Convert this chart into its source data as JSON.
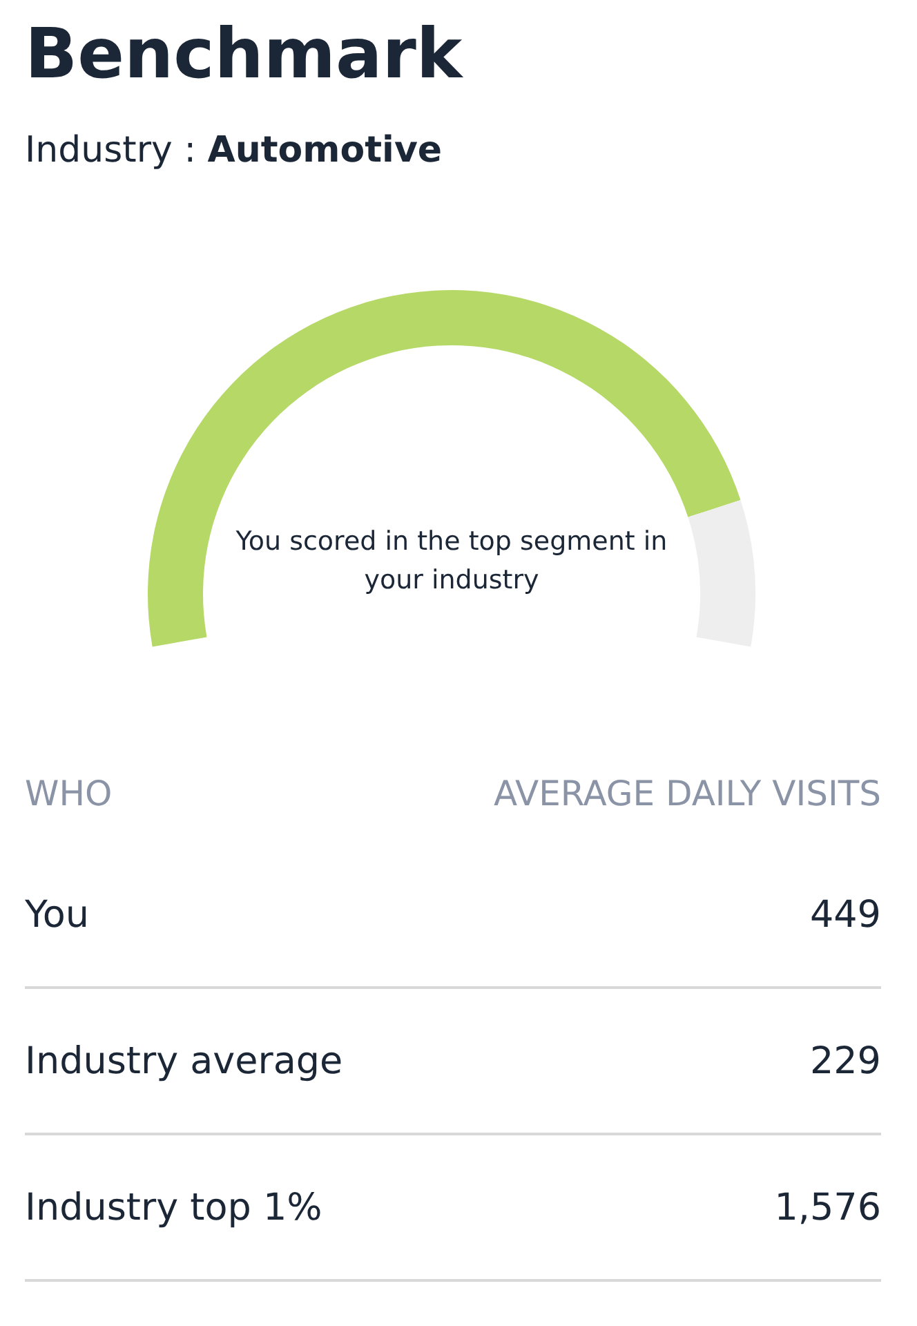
{
  "chart_data": [
    {
      "type": "donut",
      "title": "Benchmark",
      "subtitle": "Industry : Automotive",
      "categories": [
        null,
        null
      ],
      "values": [
        86,
        14
      ],
      "colors": [
        "#b5d866",
        "#eeeeee"
      ],
      "annotations": [
        "You scored in the top segment in your industry"
      ]
    },
    {
      "type": "other",
      "categories": [
        "You",
        "Industry average",
        "Industry top 1%"
      ],
      "values": [
        449,
        229,
        1576
      ],
      "value_labels": [
        "449",
        "229",
        "1,576"
      ],
      "annotations": [
        "WHO",
        "AVERAGE DAILY VISITS"
      ]
    }
  ]
}
